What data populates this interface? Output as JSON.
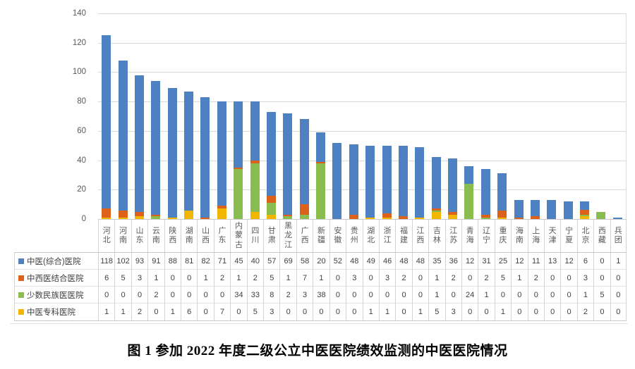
{
  "chart_data": {
    "type": "bar",
    "stacked": true,
    "title": "图 1 参加 2022 年度二级公立中医医院绩效监测的中医医院情况",
    "xlabel": "",
    "ylabel": "",
    "ylim": [
      0,
      140
    ],
    "yticks": [
      0,
      20,
      40,
      60,
      80,
      100,
      120,
      140
    ],
    "grid": true,
    "legend_position": "data-table-left-column",
    "categories": [
      "河北",
      "河南",
      "山东",
      "云南",
      "陕西",
      "湖南",
      "山西",
      "广东",
      "内蒙古",
      "四川",
      "甘肃",
      "黑龙江",
      "广西",
      "新疆",
      "安徽",
      "贵州",
      "湖北",
      "浙江",
      "福建",
      "江西",
      "吉林",
      "江苏",
      "青海",
      "辽宁",
      "重庆",
      "海南",
      "上海",
      "天津",
      "宁夏",
      "北京",
      "西藏",
      "兵团"
    ],
    "series": [
      {
        "name": "中医(综合)医院",
        "color": "#4d81c2",
        "values": [
          118,
          102,
          93,
          91,
          88,
          81,
          82,
          71,
          45,
          40,
          57,
          69,
          58,
          20,
          52,
          48,
          49,
          46,
          48,
          48,
          35,
          36,
          12,
          31,
          25,
          12,
          11,
          13,
          12,
          6,
          0,
          1
        ]
      },
      {
        "name": "中西医结合医院",
        "color": "#dc611a",
        "values": [
          6,
          5,
          3,
          1,
          0,
          0,
          1,
          2,
          1,
          2,
          5,
          1,
          7,
          1,
          0,
          3,
          0,
          3,
          2,
          0,
          1,
          2,
          0,
          2,
          5,
          1,
          2,
          0,
          0,
          3,
          0,
          0
        ]
      },
      {
        "name": "少数民族医医院",
        "color": "#8abd4f",
        "values": [
          0,
          0,
          0,
          2,
          0,
          0,
          0,
          0,
          34,
          33,
          8,
          2,
          3,
          38,
          0,
          0,
          0,
          0,
          0,
          0,
          1,
          0,
          24,
          1,
          0,
          0,
          0,
          0,
          0,
          1,
          5,
          0
        ]
      },
      {
        "name": "中医专科医院",
        "color": "#f2b500",
        "values": [
          1,
          1,
          2,
          0,
          1,
          6,
          0,
          7,
          0,
          5,
          3,
          0,
          0,
          0,
          0,
          0,
          1,
          1,
          0,
          1,
          5,
          3,
          0,
          0,
          1,
          0,
          0,
          0,
          0,
          2,
          0,
          0
        ]
      }
    ],
    "stack_order_bottom_to_top": [
      "中医专科医院",
      "少数民族医医院",
      "中西医结合医院",
      "中医(综合)医院"
    ],
    "colors": {
      "gridline": "#d9d9d9",
      "axis_text": "#595959",
      "table_text": "#404040",
      "table_border": "#d2d2d2"
    }
  }
}
